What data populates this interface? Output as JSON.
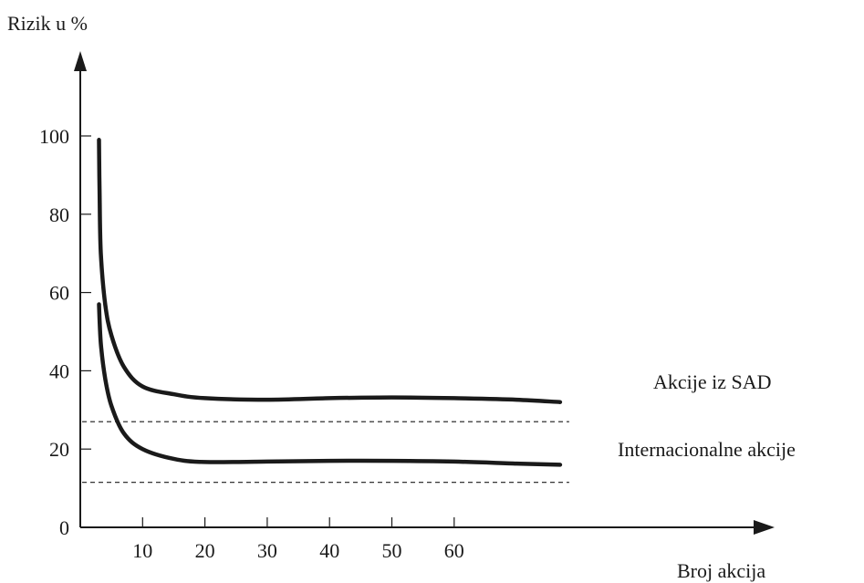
{
  "chart_data": {
    "type": "line",
    "xlabel": "Broj akcija",
    "ylabel": "Rizik u %",
    "xlim": [
      0,
      77
    ],
    "ylim": [
      0,
      105
    ],
    "x_ticks": [
      10,
      20,
      30,
      40,
      50,
      60
    ],
    "y_ticks": [
      0,
      20,
      40,
      60,
      80,
      100
    ],
    "series": [
      {
        "name": "Akcije iz SAD",
        "x": [
          3,
          3.1,
          3.3,
          4,
          5,
          7,
          10,
          15,
          20,
          30,
          40,
          50,
          60,
          70,
          77
        ],
        "y": [
          99,
          85,
          70,
          57,
          49,
          41,
          36,
          34,
          33,
          32.6,
          33,
          33.2,
          33,
          32.6,
          32
        ]
      },
      {
        "name": "Internacionalne akcije",
        "x": [
          3,
          3.3,
          4,
          5,
          7,
          10,
          15,
          20,
          30,
          40,
          50,
          60,
          70,
          77
        ],
        "y": [
          57,
          47,
          38,
          31,
          24,
          20,
          17.5,
          16.7,
          16.8,
          17,
          17,
          16.8,
          16.3,
          16
        ]
      }
    ],
    "reference_lines": [
      {
        "y": 27,
        "style": "dashed"
      },
      {
        "y": 11.5,
        "style": "dashed"
      }
    ]
  }
}
